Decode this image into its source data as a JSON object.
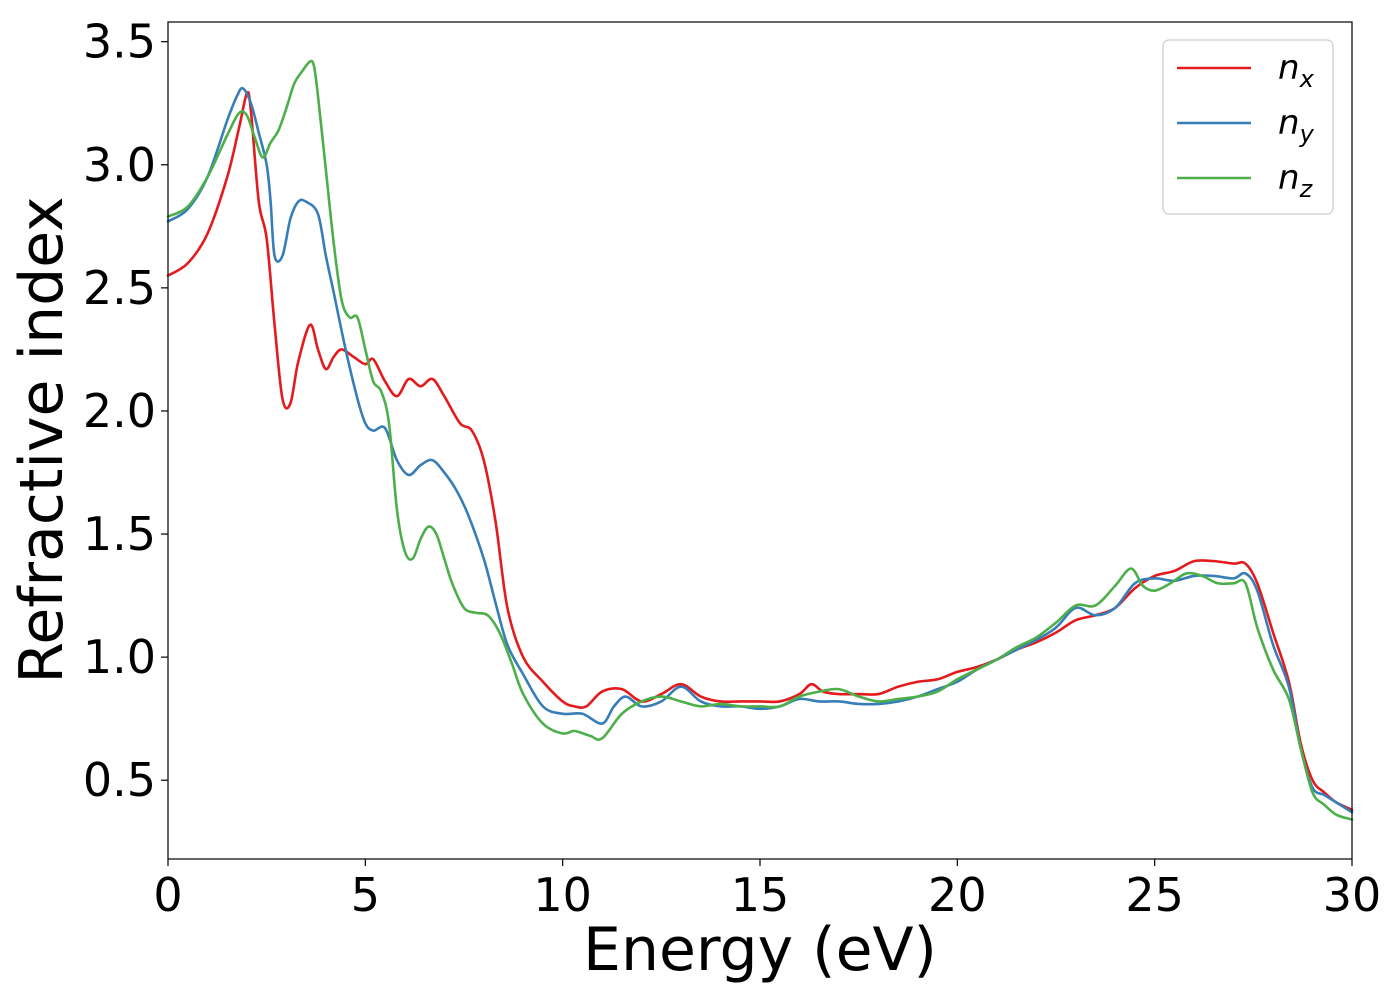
{
  "chart_data": {
    "type": "line",
    "title": "",
    "xlabel": "Energy (eV)",
    "ylabel": "Refractive index",
    "xlim": [
      0,
      30
    ],
    "ylim": [
      0.18,
      3.58
    ],
    "xticks": [
      0,
      5,
      10,
      15,
      20,
      25,
      30
    ],
    "xtick_labels": [
      "0",
      "5",
      "10",
      "15",
      "20",
      "25",
      "30"
    ],
    "yticks": [
      0.5,
      1.0,
      1.5,
      2.0,
      2.5,
      3.0,
      3.5
    ],
    "ytick_labels": [
      "0.5",
      "1.0",
      "1.5",
      "2.0",
      "2.5",
      "3.0",
      "3.5"
    ],
    "grid": false,
    "legend_position": "top-right",
    "series": [
      {
        "name": "n_x",
        "label_main": "n",
        "label_sub": "x",
        "color": "#e41a1c",
        "x": [
          0,
          0.5,
          1.0,
          1.5,
          1.8,
          2.0,
          2.1,
          2.3,
          2.5,
          2.7,
          2.9,
          3.1,
          3.3,
          3.6,
          3.8,
          4.0,
          4.2,
          4.4,
          4.7,
          5.0,
          5.2,
          5.5,
          5.8,
          6.1,
          6.4,
          6.7,
          7.0,
          7.4,
          7.7,
          8.0,
          8.3,
          8.6,
          9.0,
          9.5,
          10.0,
          10.3,
          10.6,
          11.0,
          11.5,
          12.0,
          12.5,
          13.0,
          13.5,
          14.0,
          14.5,
          15.0,
          15.5,
          16.0,
          16.3,
          16.6,
          17.0,
          17.5,
          18.0,
          18.5,
          19.0,
          19.5,
          20.0,
          20.5,
          21.0,
          21.5,
          22.0,
          22.5,
          23.0,
          23.5,
          24.0,
          24.5,
          25.0,
          25.5,
          26.0,
          26.5,
          27.0,
          27.3,
          27.6,
          28.0,
          28.4,
          28.7,
          29.0,
          29.3,
          29.6,
          30.0
        ],
        "y": [
          2.55,
          2.6,
          2.72,
          2.95,
          3.15,
          3.29,
          3.22,
          2.85,
          2.7,
          2.35,
          2.05,
          2.03,
          2.2,
          2.35,
          2.25,
          2.17,
          2.22,
          2.25,
          2.22,
          2.19,
          2.21,
          2.12,
          2.06,
          2.13,
          2.1,
          2.13,
          2.06,
          1.95,
          1.92,
          1.8,
          1.55,
          1.2,
          1.0,
          0.9,
          0.82,
          0.8,
          0.8,
          0.86,
          0.87,
          0.82,
          0.85,
          0.89,
          0.84,
          0.82,
          0.82,
          0.82,
          0.82,
          0.85,
          0.89,
          0.86,
          0.85,
          0.85,
          0.85,
          0.88,
          0.9,
          0.91,
          0.94,
          0.96,
          0.99,
          1.03,
          1.06,
          1.1,
          1.15,
          1.17,
          1.2,
          1.28,
          1.33,
          1.35,
          1.39,
          1.39,
          1.38,
          1.38,
          1.3,
          1.1,
          0.9,
          0.65,
          0.5,
          0.45,
          0.41,
          0.38
        ]
      },
      {
        "name": "n_y",
        "label_main": "n",
        "label_sub": "y",
        "color": "#377eb8",
        "x": [
          0,
          0.5,
          1.0,
          1.5,
          1.75,
          1.9,
          2.1,
          2.3,
          2.5,
          2.6,
          2.7,
          2.9,
          3.1,
          3.3,
          3.5,
          3.8,
          4.0,
          4.2,
          4.5,
          4.8,
          5.0,
          5.2,
          5.5,
          5.8,
          6.1,
          6.4,
          6.7,
          7.0,
          7.3,
          7.6,
          8.0,
          8.3,
          8.6,
          9.0,
          9.5,
          10.0,
          10.5,
          11.0,
          11.3,
          11.6,
          12.0,
          12.5,
          13.0,
          13.5,
          14.0,
          14.5,
          15.0,
          15.5,
          16.0,
          16.5,
          17.0,
          17.5,
          18.0,
          18.5,
          19.0,
          19.5,
          20.0,
          20.5,
          21.0,
          21.5,
          22.0,
          22.5,
          23.0,
          23.5,
          24.0,
          24.5,
          25.0,
          25.5,
          26.0,
          26.5,
          27.0,
          27.3,
          27.6,
          28.0,
          28.4,
          28.7,
          29.0,
          29.3,
          29.6,
          30.0
        ],
        "y": [
          2.77,
          2.82,
          2.95,
          3.18,
          3.28,
          3.31,
          3.25,
          3.13,
          3.0,
          2.85,
          2.63,
          2.63,
          2.78,
          2.85,
          2.85,
          2.8,
          2.63,
          2.48,
          2.25,
          2.05,
          1.95,
          1.92,
          1.93,
          1.8,
          1.74,
          1.78,
          1.8,
          1.75,
          1.68,
          1.58,
          1.4,
          1.22,
          1.05,
          0.93,
          0.8,
          0.77,
          0.77,
          0.73,
          0.8,
          0.84,
          0.8,
          0.82,
          0.88,
          0.82,
          0.8,
          0.8,
          0.79,
          0.8,
          0.83,
          0.82,
          0.82,
          0.81,
          0.81,
          0.82,
          0.84,
          0.87,
          0.9,
          0.95,
          0.99,
          1.03,
          1.07,
          1.12,
          1.2,
          1.17,
          1.2,
          1.3,
          1.32,
          1.31,
          1.33,
          1.33,
          1.32,
          1.34,
          1.27,
          1.05,
          0.88,
          0.63,
          0.47,
          0.44,
          0.41,
          0.37
        ]
      },
      {
        "name": "n_z",
        "label_main": "n",
        "label_sub": "z",
        "color": "#4daf4a",
        "x": [
          0,
          0.5,
          1.0,
          1.5,
          1.8,
          2.0,
          2.2,
          2.4,
          2.6,
          2.8,
          3.0,
          3.2,
          3.4,
          3.6,
          3.7,
          3.8,
          4.0,
          4.2,
          4.4,
          4.6,
          4.8,
          5.0,
          5.2,
          5.4,
          5.6,
          5.8,
          6.0,
          6.2,
          6.4,
          6.6,
          6.8,
          7.0,
          7.2,
          7.5,
          7.8,
          8.1,
          8.4,
          8.7,
          9.0,
          9.5,
          10.0,
          10.3,
          10.7,
          11.0,
          11.5,
          12.0,
          12.5,
          13.0,
          13.5,
          14.0,
          14.5,
          15.0,
          15.5,
          16.0,
          16.5,
          17.0,
          17.5,
          18.0,
          18.5,
          19.0,
          19.5,
          20.0,
          20.5,
          21.0,
          21.5,
          22.0,
          22.5,
          23.0,
          23.5,
          24.0,
          24.4,
          24.7,
          25.0,
          25.4,
          25.8,
          26.2,
          26.6,
          27.0,
          27.3,
          27.6,
          28.0,
          28.4,
          28.7,
          29.0,
          29.3,
          29.6,
          30.0
        ],
        "y": [
          2.79,
          2.83,
          2.95,
          3.12,
          3.21,
          3.2,
          3.11,
          3.03,
          3.09,
          3.14,
          3.23,
          3.33,
          3.38,
          3.42,
          3.4,
          3.28,
          2.98,
          2.68,
          2.45,
          2.38,
          2.38,
          2.25,
          2.12,
          2.08,
          1.95,
          1.6,
          1.43,
          1.4,
          1.48,
          1.53,
          1.5,
          1.4,
          1.3,
          1.2,
          1.18,
          1.17,
          1.1,
          0.98,
          0.85,
          0.73,
          0.69,
          0.7,
          0.68,
          0.67,
          0.77,
          0.82,
          0.84,
          0.82,
          0.8,
          0.81,
          0.8,
          0.8,
          0.8,
          0.84,
          0.86,
          0.87,
          0.84,
          0.82,
          0.83,
          0.84,
          0.86,
          0.91,
          0.95,
          0.99,
          1.04,
          1.08,
          1.14,
          1.21,
          1.21,
          1.29,
          1.36,
          1.29,
          1.27,
          1.3,
          1.34,
          1.33,
          1.3,
          1.3,
          1.3,
          1.12,
          0.95,
          0.83,
          0.63,
          0.45,
          0.4,
          0.36,
          0.34
        ]
      }
    ]
  }
}
